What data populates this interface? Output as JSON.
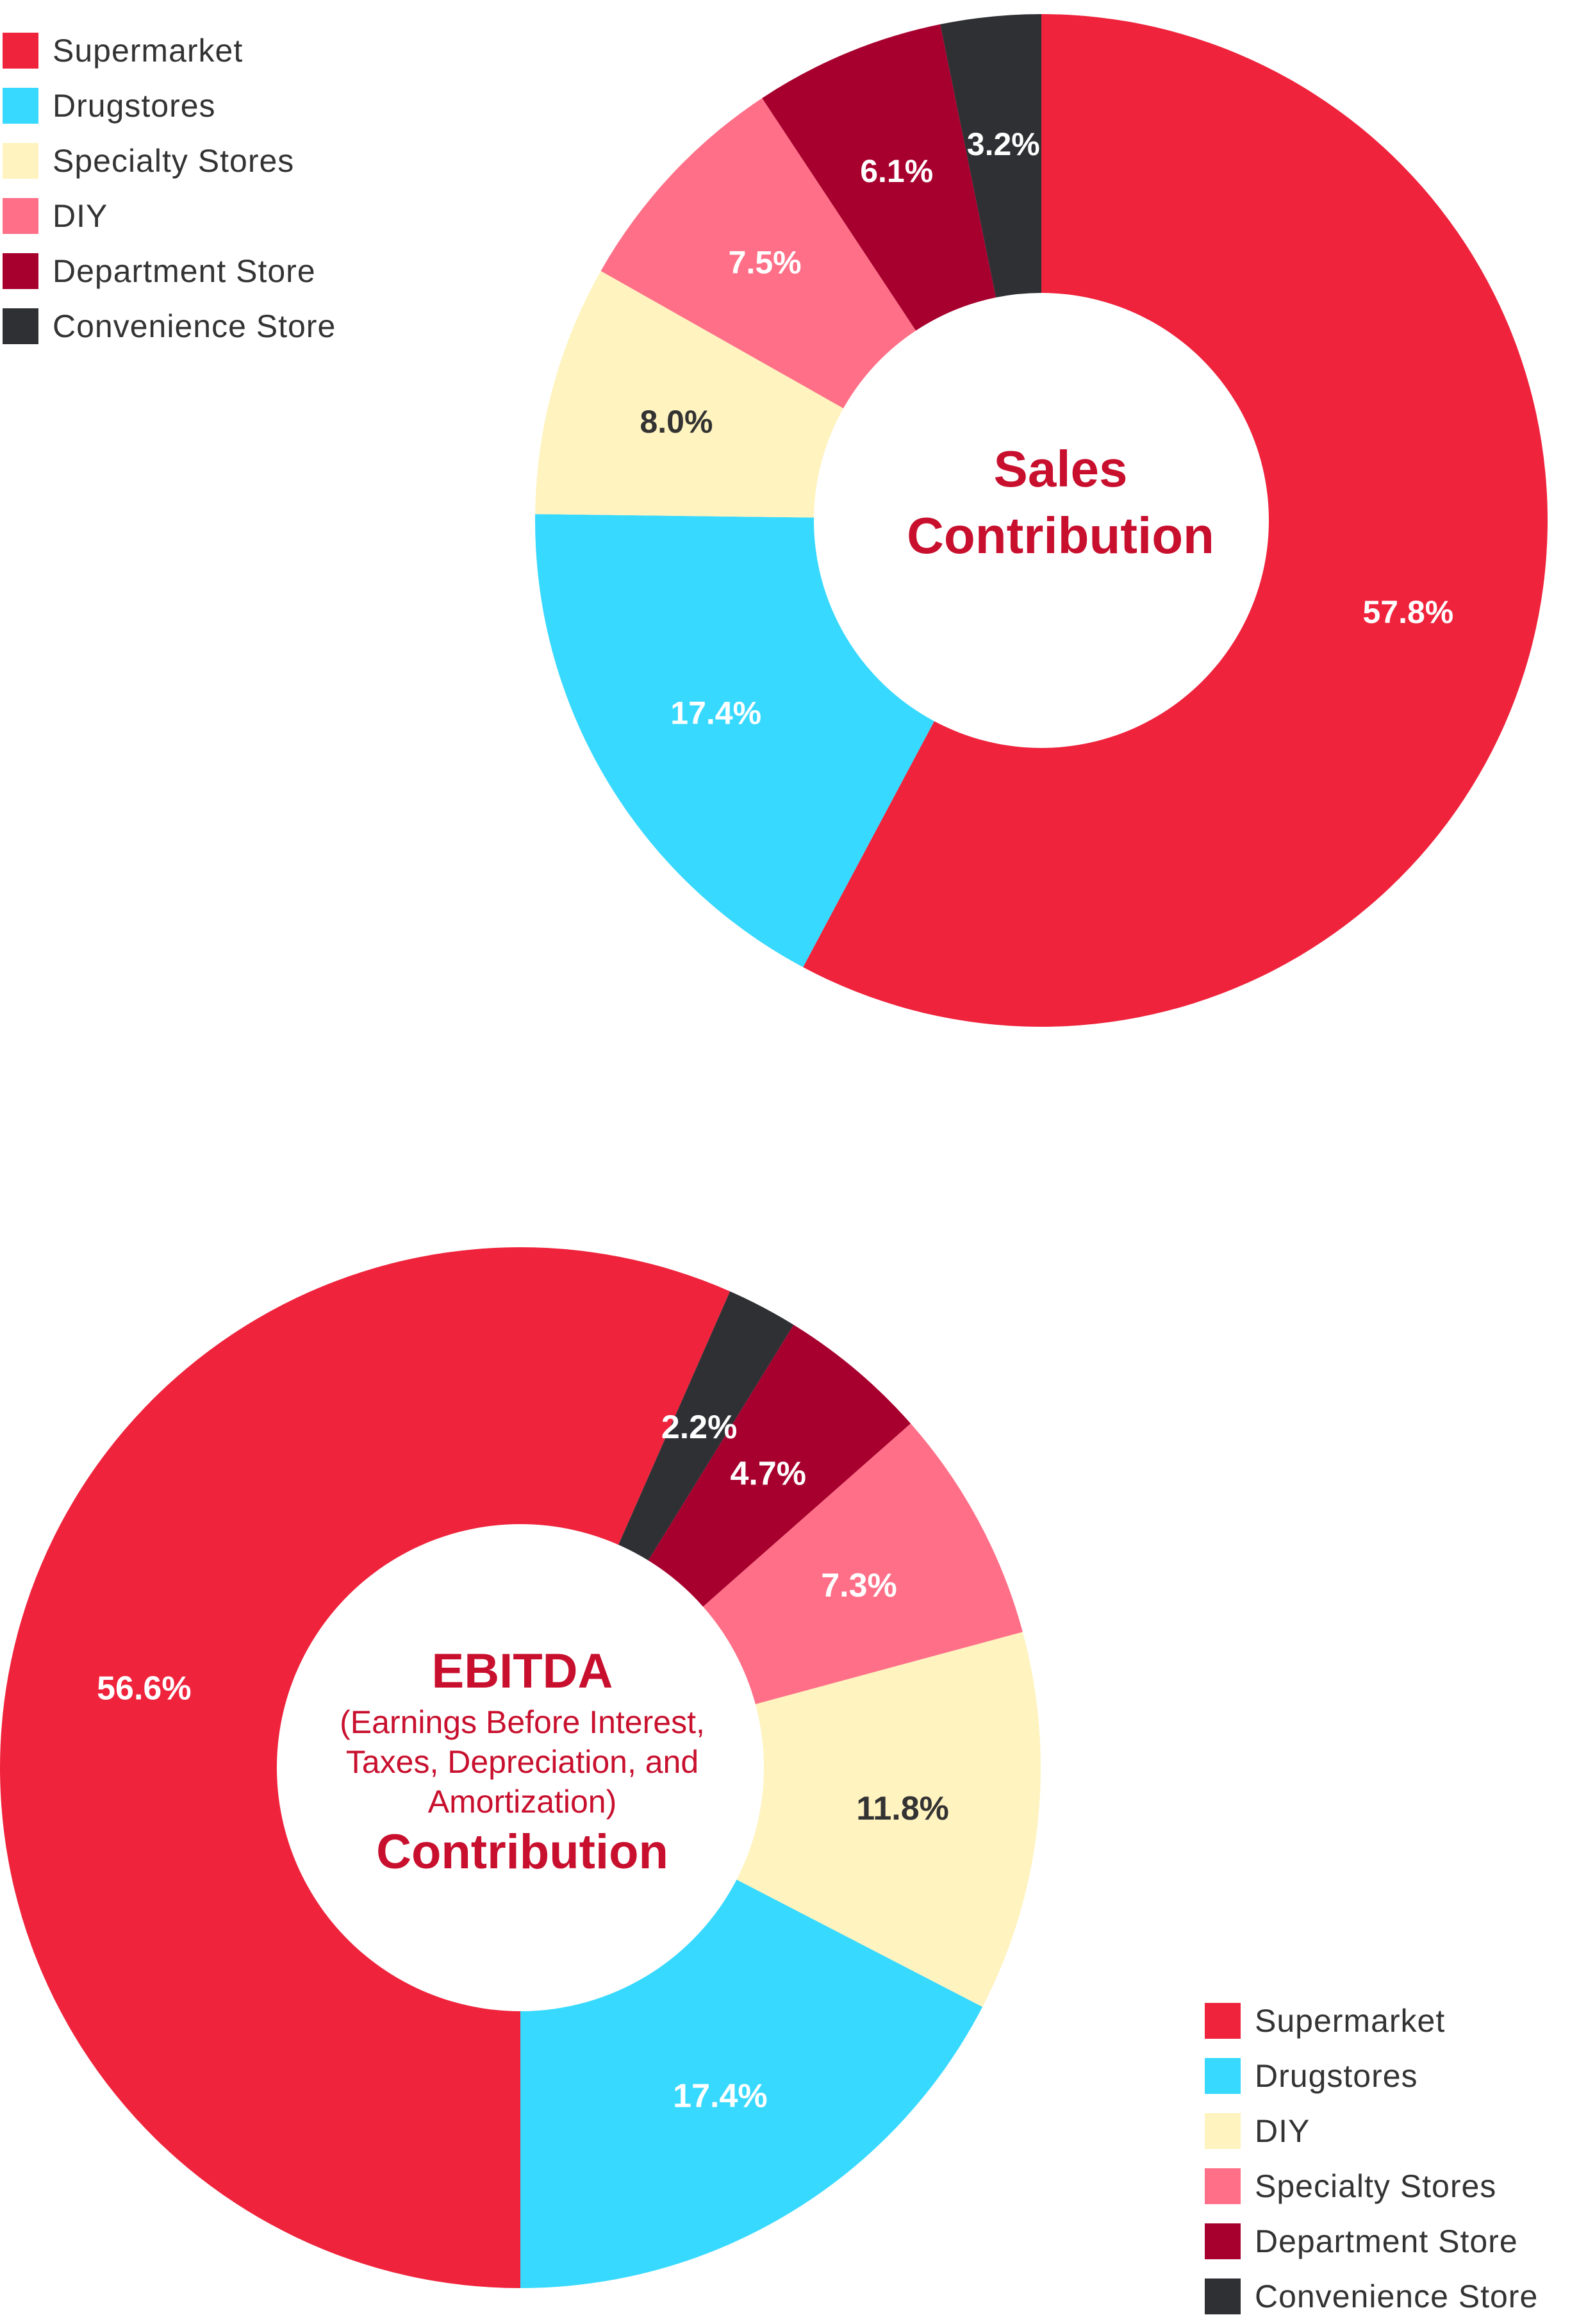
{
  "chart_data": [
    {
      "type": "pie",
      "title_line1": "Sales",
      "title_line2": "Contribution",
      "legend_placement": "top-left",
      "categories": [
        "Supermarket",
        "Drugstores",
        "Specialty Stores",
        "DIY",
        "Department Store",
        "Convenience Store"
      ],
      "values": [
        57.8,
        17.4,
        8.0,
        7.5,
        6.1,
        3.2
      ],
      "labels": [
        "57.8%",
        "17.4%",
        "8.0%",
        "7.5%",
        "6.1%",
        "3.2%"
      ],
      "colors": [
        "#ef233c",
        "#38d9ff",
        "#fff3bf",
        "#ff7088",
        "#a8002e",
        "#2e3034"
      ],
      "label_colors": [
        "#ffffff",
        "#ffffff",
        "#333333",
        "#ffffff",
        "#ffffff",
        "#ffffff"
      ]
    },
    {
      "type": "pie",
      "title_line1": "EBITDA",
      "subtitle": [
        "(Earnings Before Interest,",
        "Taxes, Depreciation, and",
        "Amortization)"
      ],
      "title_line2": "Contribution",
      "legend_placement": "bottom-right",
      "categories": [
        "Supermarket",
        "Drugstores",
        "DIY",
        "Specialty Stores",
        "Department Store",
        "Convenience Store"
      ],
      "values": [
        56.6,
        17.4,
        11.8,
        7.3,
        4.7,
        2.2
      ],
      "labels": [
        "56.6%",
        "17.4%",
        "11.8%",
        "7.3%",
        "4.7%",
        "2.2%"
      ],
      "colors": [
        "#ef233c",
        "#38d9ff",
        "#fff3bf",
        "#ff7088",
        "#a8002e",
        "#2e3034"
      ],
      "label_colors": [
        "#ffffff",
        "#ffffff",
        "#333333",
        "#ffffff",
        "#ffffff",
        "#ffffff"
      ]
    }
  ],
  "legend_sales": [
    {
      "label": "Supermarket",
      "color": "#ef233c"
    },
    {
      "label": "Drugstores",
      "color": "#38d9ff"
    },
    {
      "label": "Specialty Stores",
      "color": "#fff3bf"
    },
    {
      "label": "DIY",
      "color": "#ff7088"
    },
    {
      "label": "Department Store",
      "color": "#a8002e"
    },
    {
      "label": "Convenience Store",
      "color": "#2e3034"
    }
  ],
  "legend_ebitda": [
    {
      "label": "Supermarket",
      "color": "#ef233c"
    },
    {
      "label": "Drugstores",
      "color": "#38d9ff"
    },
    {
      "label": "DIY",
      "color": "#fff3bf"
    },
    {
      "label": "Specialty Stores",
      "color": "#ff7088"
    },
    {
      "label": "Department Store",
      "color": "#a8002e"
    },
    {
      "label": "Convenience Store",
      "color": "#2e3034"
    }
  ]
}
